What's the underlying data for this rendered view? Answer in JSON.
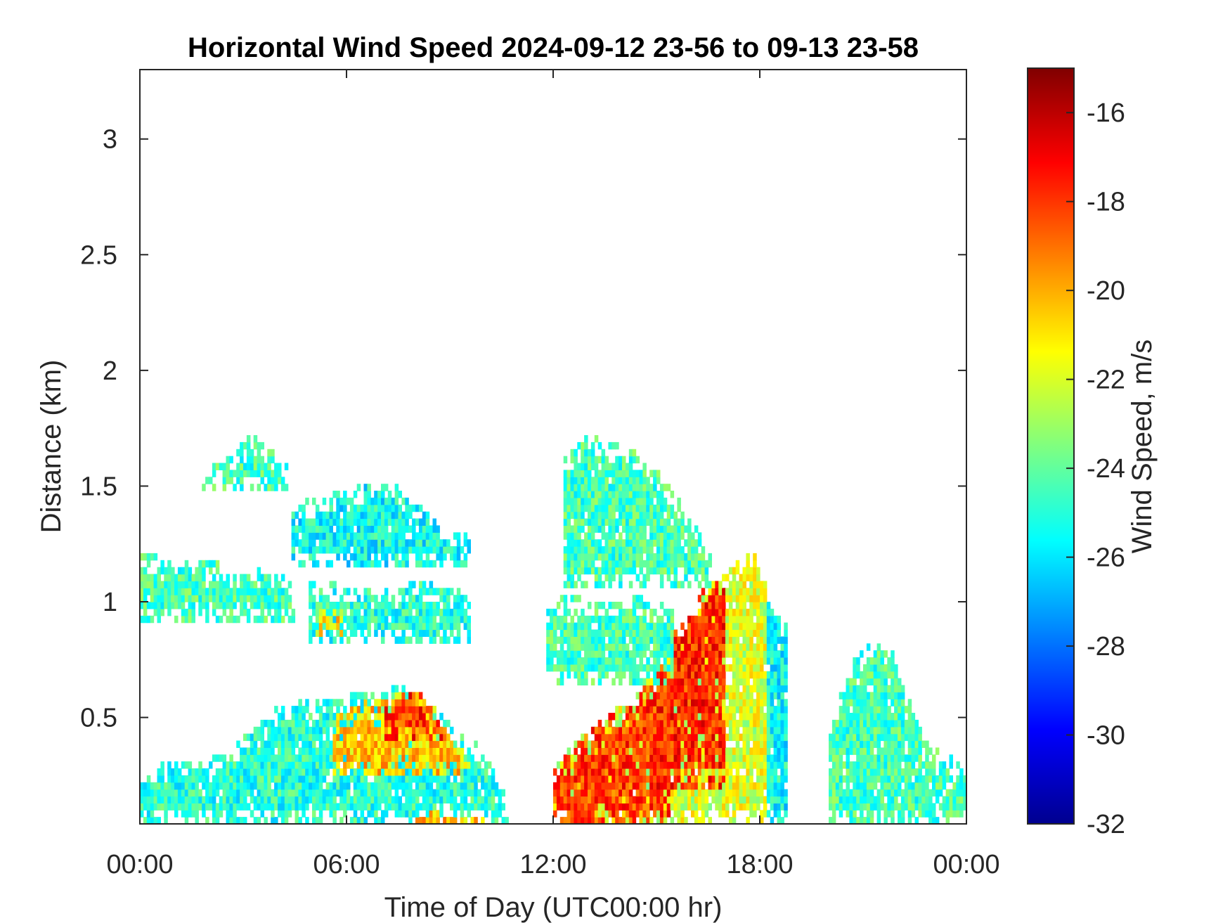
{
  "chart_data": {
    "type": "heatmap",
    "title": "Horizontal Wind Speed 2024-09-12 23-56 to 09-13 23-58",
    "xlabel": "Time of Day (UTC00:00 hr)",
    "ylabel": "Distance (km)",
    "x_unit": "hour",
    "xlim": [
      0,
      24
    ],
    "ylim": [
      0.04,
      3.3
    ],
    "x_ticks": [
      0,
      6,
      12,
      18,
      24
    ],
    "x_tick_labels": [
      "00:00",
      "06:00",
      "12:00",
      "18:00",
      "00:00"
    ],
    "y_ticks": [
      0.5,
      1,
      1.5,
      2,
      2.5,
      3
    ],
    "y_tick_labels": [
      "0.5",
      "1",
      "1.5",
      "2",
      "2.5",
      "3"
    ],
    "colorbar": {
      "label": "Wind Speed, m/s",
      "colormap": "jet",
      "clim": [
        -32,
        -15
      ],
      "ticks": [
        -32,
        -30,
        -28,
        -26,
        -24,
        -22,
        -20,
        -18,
        -16
      ],
      "tick_labels": [
        "-32",
        "-30",
        "-28",
        "-26",
        "-24",
        "-22",
        "-20",
        "-18",
        "-16"
      ]
    },
    "grid": false,
    "regions": [
      {
        "x": [
          0.0,
          0.6,
          1.2,
          2.0,
          2.8,
          3.3,
          4.0,
          4.8,
          5.6,
          6.3,
          7.0,
          7.6,
          8.3,
          8.8,
          9.4,
          10.0,
          10.4,
          10.7
        ],
        "top": [
          0.2,
          0.3,
          0.32,
          0.32,
          0.38,
          0.45,
          0.55,
          0.57,
          0.58,
          0.6,
          0.62,
          0.63,
          0.6,
          0.5,
          0.42,
          0.36,
          0.27,
          0.12
        ],
        "bottom": 0.04,
        "base": -25.0
      },
      {
        "x": [
          5.6,
          6.4,
          7.2,
          8.0,
          8.5,
          8.9,
          9.3,
          9.7
        ],
        "top": [
          0.5,
          0.56,
          0.59,
          0.62,
          0.55,
          0.45,
          0.37,
          0.28
        ],
        "bottom": 0.25,
        "base": -20.5
      },
      {
        "x": [
          7.1,
          7.6,
          8.1,
          8.4,
          8.8
        ],
        "top": [
          0.56,
          0.6,
          0.62,
          0.55,
          0.45
        ],
        "bottom": 0.4,
        "base": -18.0
      },
      {
        "x": [
          8.0,
          8.6,
          9.4,
          10.0
        ],
        "top": [
          0.08,
          0.09,
          0.08,
          0.07
        ],
        "bottom": 0.04,
        "base": -20.5
      },
      {
        "x": [
          0.0,
          0.5,
          1.0,
          1.6,
          2.2,
          2.6,
          3.0,
          3.5,
          4.0,
          4.5
        ],
        "top": [
          1.2,
          1.2,
          1.19,
          1.18,
          1.17,
          1.14,
          1.12,
          1.16,
          1.12,
          1.08
        ],
        "bottom": 0.9,
        "base": -24.5
      },
      {
        "x": [
          1.8,
          2.5,
          3.2,
          3.8,
          4.3
        ],
        "top": [
          1.55,
          1.62,
          1.72,
          1.66,
          1.58
        ],
        "bottom": 1.48,
        "base": -24.5
      },
      {
        "x": [
          4.4,
          5.2,
          6.0,
          6.8,
          7.6,
          8.4,
          9.0,
          9.6
        ],
        "top": [
          1.42,
          1.45,
          1.48,
          1.52,
          1.5,
          1.38,
          1.32,
          1.28
        ],
        "bottom": 1.15,
        "base": -25.5
      },
      {
        "x": [
          4.9,
          5.6,
          6.2,
          6.8,
          7.4,
          8.0,
          8.6,
          9.2,
          9.6
        ],
        "top": [
          1.08,
          1.08,
          1.07,
          1.05,
          1.07,
          1.09,
          1.07,
          1.05,
          1.02
        ],
        "bottom": 0.82,
        "base": -25.0
      },
      {
        "x": [
          5.1,
          5.9
        ],
        "top": [
          0.98,
          0.98
        ],
        "bottom": 0.85,
        "base": -21.0
      },
      {
        "x": [
          12.0,
          12.6,
          13.2,
          13.8,
          14.4,
          15.0,
          15.6,
          16.2,
          16.8,
          17.4,
          17.8,
          18.2
        ],
        "top": [
          0.28,
          0.38,
          0.48,
          0.55,
          0.6,
          0.7,
          0.8,
          1.0,
          1.1,
          1.18,
          1.24,
          1.1
        ],
        "bottom": 0.04,
        "base": -22.0
      },
      {
        "x": [
          12.0,
          12.5,
          13.0,
          13.6,
          14.3,
          14.9,
          15.4
        ],
        "top": [
          0.27,
          0.35,
          0.44,
          0.5,
          0.58,
          0.66,
          0.62
        ],
        "bottom": 0.04,
        "base": -18.2
      },
      {
        "x": [
          15.0,
          15.6,
          16.1,
          16.6,
          17.0
        ],
        "top": [
          0.7,
          0.9,
          1.0,
          1.1,
          1.05
        ],
        "bottom": 0.2,
        "base": -17.8
      },
      {
        "x": [
          11.8,
          12.6,
          13.5,
          14.5,
          15.0,
          15.5
        ],
        "top": [
          1.01,
          1.02,
          1.0,
          1.02,
          1.0,
          0.98
        ],
        "bottom": 0.64,
        "base": -24.5
      },
      {
        "x": [
          12.3,
          13.0,
          13.8,
          14.6,
          15.4,
          16.2,
          16.6
        ],
        "top": [
          1.62,
          1.72,
          1.68,
          1.63,
          1.5,
          1.32,
          1.2
        ],
        "bottom": 1.05,
        "base": -24.5
      },
      {
        "x": [
          18.2,
          18.8
        ],
        "top": [
          1.0,
          0.9
        ],
        "bottom": 0.04,
        "base": -25.5
      },
      {
        "x": [
          20.0,
          20.5,
          21.2,
          21.8,
          22.3,
          22.8,
          23.3,
          24.0
        ],
        "top": [
          0.4,
          0.72,
          0.82,
          0.8,
          0.6,
          0.4,
          0.35,
          0.28
        ],
        "bottom": 0.04,
        "base": -24.5
      }
    ]
  }
}
